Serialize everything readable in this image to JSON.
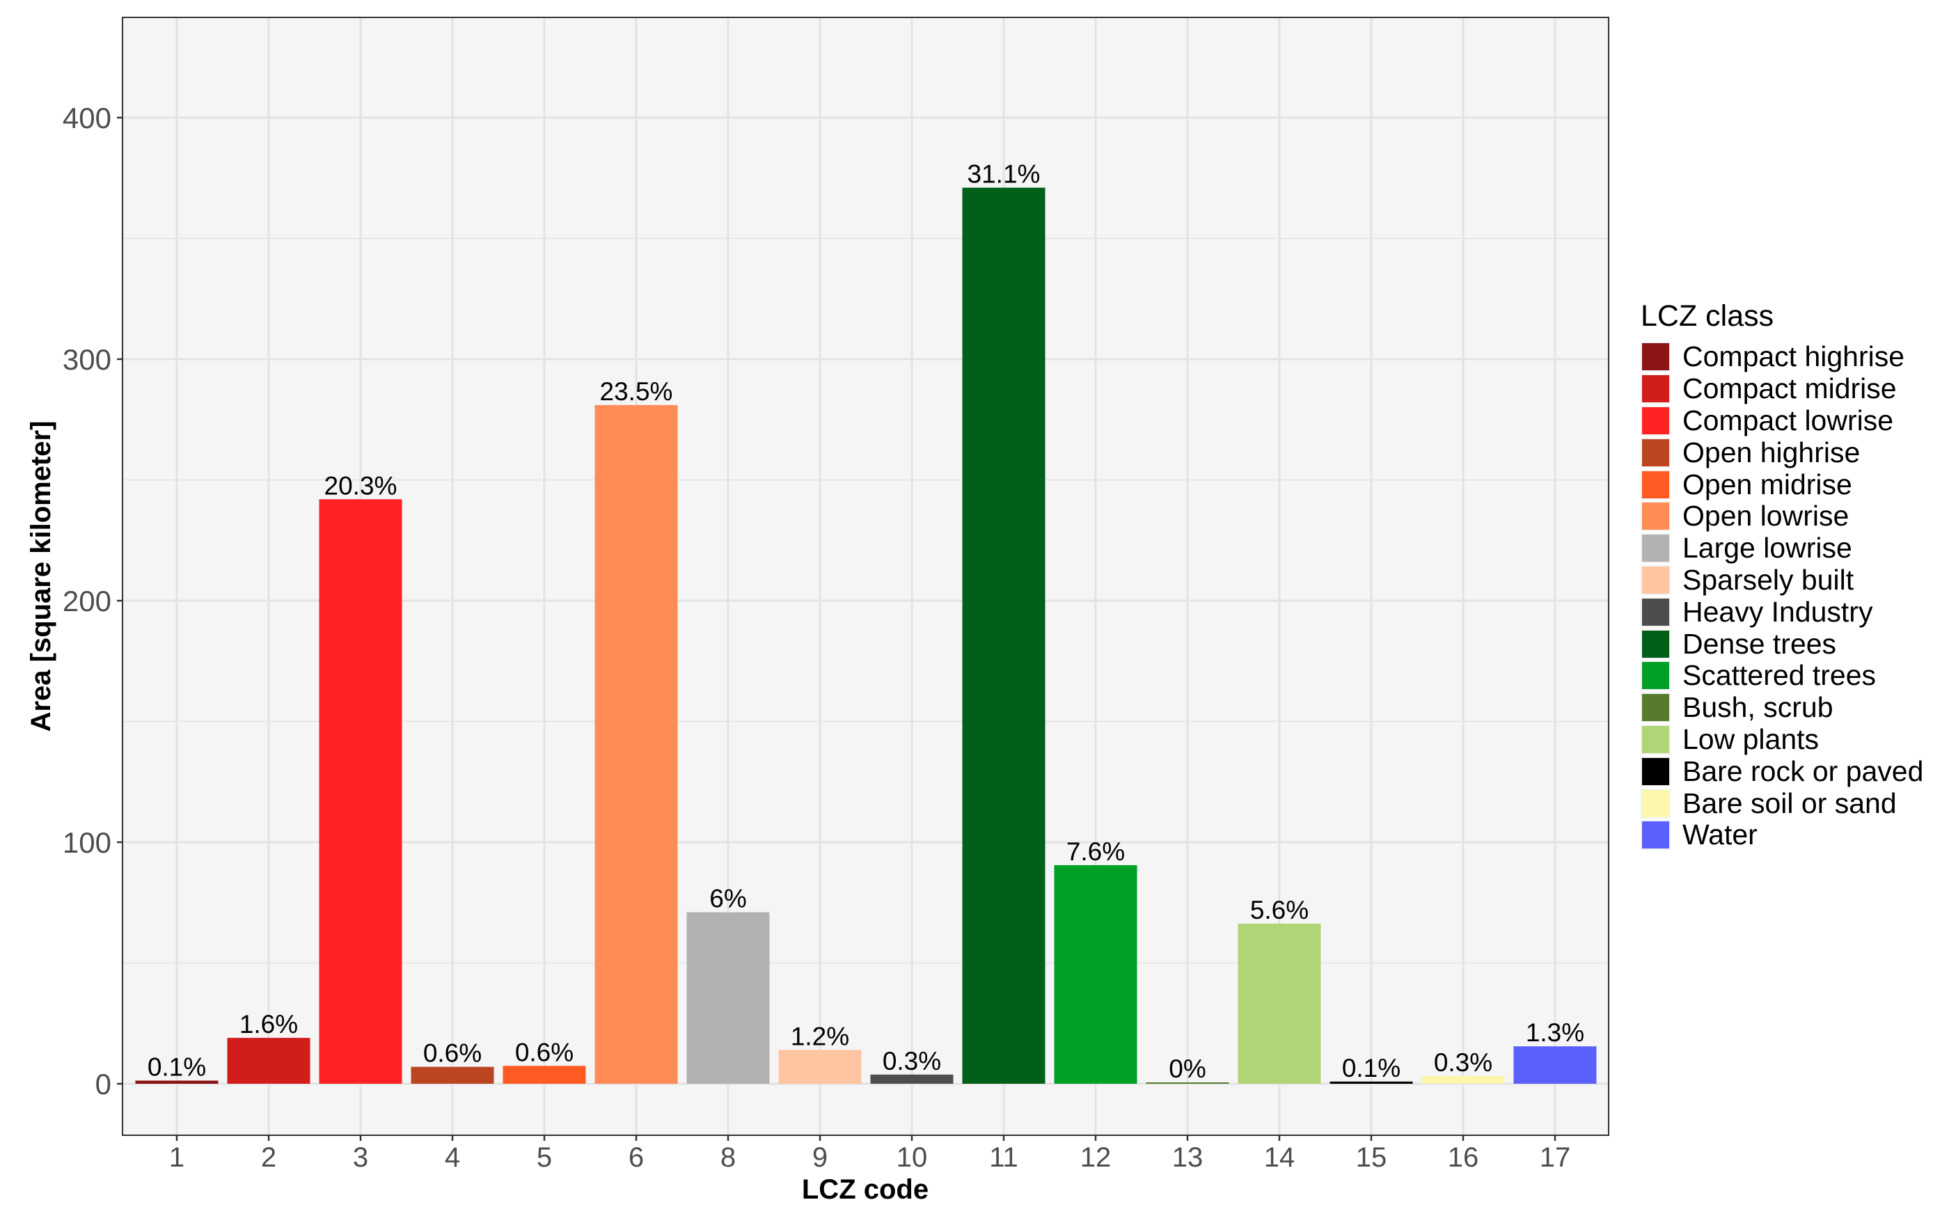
{
  "chart_data": {
    "type": "bar",
    "title": "",
    "xlabel": "LCZ code",
    "ylabel": "Area [square kilometer]",
    "ylim": [
      -21.3,
      441.5
    ],
    "yticks": [
      0,
      100,
      200,
      300,
      400
    ],
    "grid": true,
    "legend_position": "right",
    "legend_title": "LCZ class",
    "categories": [
      "1",
      "2",
      "3",
      "4",
      "5",
      "6",
      "8",
      "9",
      "10",
      "11",
      "12",
      "13",
      "14",
      "15",
      "16",
      "17"
    ],
    "values": [
      1.3,
      19,
      242,
      7,
      7.4,
      281,
      71,
      14,
      3.8,
      371,
      90.5,
      0.4,
      66.3,
      0.9,
      3.2,
      15.5
    ],
    "labels": [
      "0.1%",
      "1.6%",
      "20.3%",
      "0.6%",
      "0.6%",
      "23.5%",
      "6%",
      "1.2%",
      "0.3%",
      "31.1%",
      "7.6%",
      "0%",
      "5.6%",
      "0.1%",
      "0.3%",
      "1.3%"
    ],
    "series_classes": [
      "Compact highrise",
      "Compact midrise",
      "Compact lowrise",
      "Open highrise",
      "Open midrise",
      "Open lowrise",
      "Large lowrise",
      "Sparsely built",
      "Heavy Industry",
      "Dense trees",
      "Scattered trees",
      "Bush, scrub",
      "Low plants",
      "Bare rock or paved",
      "Bare soil or sand",
      "Water"
    ],
    "colors": [
      "#8b1414",
      "#d21d1d",
      "#ff2222",
      "#bb4520",
      "#ff5a22",
      "#ff8c54",
      "#b2b2b2",
      "#ffc4a2",
      "#4d4d4d",
      "#006019",
      "#00a025",
      "#587a2f",
      "#afd577",
      "#000000",
      "#fcf7ac",
      "#5a60f9"
    ]
  },
  "legend": {
    "title": "LCZ class",
    "items": [
      {
        "label": "Compact highrise",
        "color": "#8b1414"
      },
      {
        "label": "Compact midrise",
        "color": "#d21d1d"
      },
      {
        "label": "Compact lowrise",
        "color": "#ff2222"
      },
      {
        "label": "Open highrise",
        "color": "#bb4520"
      },
      {
        "label": "Open midrise",
        "color": "#ff5a22"
      },
      {
        "label": "Open lowrise",
        "color": "#ff8c54"
      },
      {
        "label": "Large lowrise",
        "color": "#b2b2b2"
      },
      {
        "label": "Sparsely built",
        "color": "#ffc4a2"
      },
      {
        "label": "Heavy Industry",
        "color": "#4d4d4d"
      },
      {
        "label": "Dense trees",
        "color": "#006019"
      },
      {
        "label": "Scattered trees",
        "color": "#00a025"
      },
      {
        "label": "Bush, scrub",
        "color": "#587a2f"
      },
      {
        "label": "Low plants",
        "color": "#afd577"
      },
      {
        "label": "Bare rock or paved",
        "color": "#000000"
      },
      {
        "label": "Bare soil or sand",
        "color": "#fcf7ac"
      },
      {
        "label": "Water",
        "color": "#5a60f9"
      }
    ]
  },
  "axes": {
    "x_title": "LCZ code",
    "y_title": "Area [square kilometer]"
  },
  "style": {
    "panel_bg": "#f5f5f5",
    "grid_color": "#e3e3e3",
    "axis_color": "#333333",
    "tick_text_color": "#4d4d4d"
  }
}
